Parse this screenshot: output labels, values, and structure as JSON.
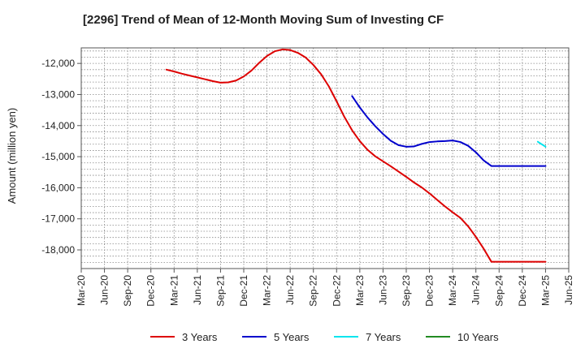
{
  "chart_data": {
    "type": "line",
    "title": "[2296]  Trend of Mean of 12-Month Moving Sum of Investing CF",
    "xlabel": "",
    "ylabel": "Amount (million yen)",
    "ylim": [
      -18600,
      -11500
    ],
    "yticks": [
      -12000,
      -13000,
      -14000,
      -15000,
      -16000,
      -17000,
      -18000
    ],
    "ytick_labels": [
      "-12,000",
      "-13,000",
      "-14,000",
      "-15,000",
      "-16,000",
      "-17,000",
      "-18,000"
    ],
    "x_tick_labels": [
      "Mar-20",
      "Jun-20",
      "Sep-20",
      "Dec-20",
      "Mar-21",
      "Jun-21",
      "Sep-21",
      "Dec-21",
      "Mar-22",
      "Jun-22",
      "Sep-22",
      "Dec-22",
      "Mar-23",
      "Jun-23",
      "Sep-23",
      "Dec-23",
      "Mar-24",
      "Jun-24",
      "Sep-24",
      "Dec-24",
      "Mar-25",
      "Jun-25"
    ],
    "grid": true,
    "legend_position": "bottom",
    "series": [
      {
        "name": "3 Years",
        "color": "#dd0000",
        "x": [
          11,
          12,
          13,
          14,
          15,
          16,
          17,
          18,
          19,
          20,
          21,
          22,
          23,
          24,
          25,
          26,
          27,
          28,
          29,
          30,
          31,
          32,
          33,
          34,
          35,
          36,
          37,
          38,
          39,
          40,
          41,
          42,
          43,
          44,
          45,
          46,
          47,
          48,
          49,
          50,
          51,
          52,
          53,
          54,
          55,
          56,
          57,
          58,
          59,
          60
        ],
        "values": [
          -12200,
          -12260,
          -12330,
          -12390,
          -12450,
          -12510,
          -12570,
          -12620,
          -12610,
          -12550,
          -12420,
          -12230,
          -11980,
          -11760,
          -11610,
          -11550,
          -11570,
          -11660,
          -11810,
          -12050,
          -12350,
          -12740,
          -13220,
          -13720,
          -14150,
          -14500,
          -14780,
          -14990,
          -15150,
          -15310,
          -15480,
          -15650,
          -15830,
          -15990,
          -16180,
          -16390,
          -16600,
          -16790,
          -16970,
          -17240,
          -17580,
          -17960,
          -18380,
          -18380,
          -18380,
          -18380,
          -18380,
          -18380,
          -18380,
          -18380
        ]
      },
      {
        "name": "5 Years",
        "color": "#0000cc",
        "x": [
          35,
          36,
          37,
          38,
          39,
          40,
          41,
          42,
          43,
          44,
          45,
          46,
          47,
          48,
          49,
          50,
          51,
          52,
          53,
          54,
          55,
          56,
          57,
          58,
          59,
          60
        ],
        "values": [
          -13050,
          -13420,
          -13740,
          -14020,
          -14270,
          -14490,
          -14630,
          -14680,
          -14670,
          -14590,
          -14530,
          -14510,
          -14500,
          -14480,
          -14530,
          -14650,
          -14860,
          -15120,
          -15300,
          -15300,
          -15300,
          -15300,
          -15300,
          -15300,
          -15300,
          -15300
        ]
      },
      {
        "name": "7 Years",
        "color": "#00e5ee",
        "x": [
          59,
          60
        ],
        "values": [
          -14520,
          -14680
        ]
      },
      {
        "name": "10 Years",
        "color": "#228b22",
        "x": [],
        "values": []
      }
    ]
  }
}
